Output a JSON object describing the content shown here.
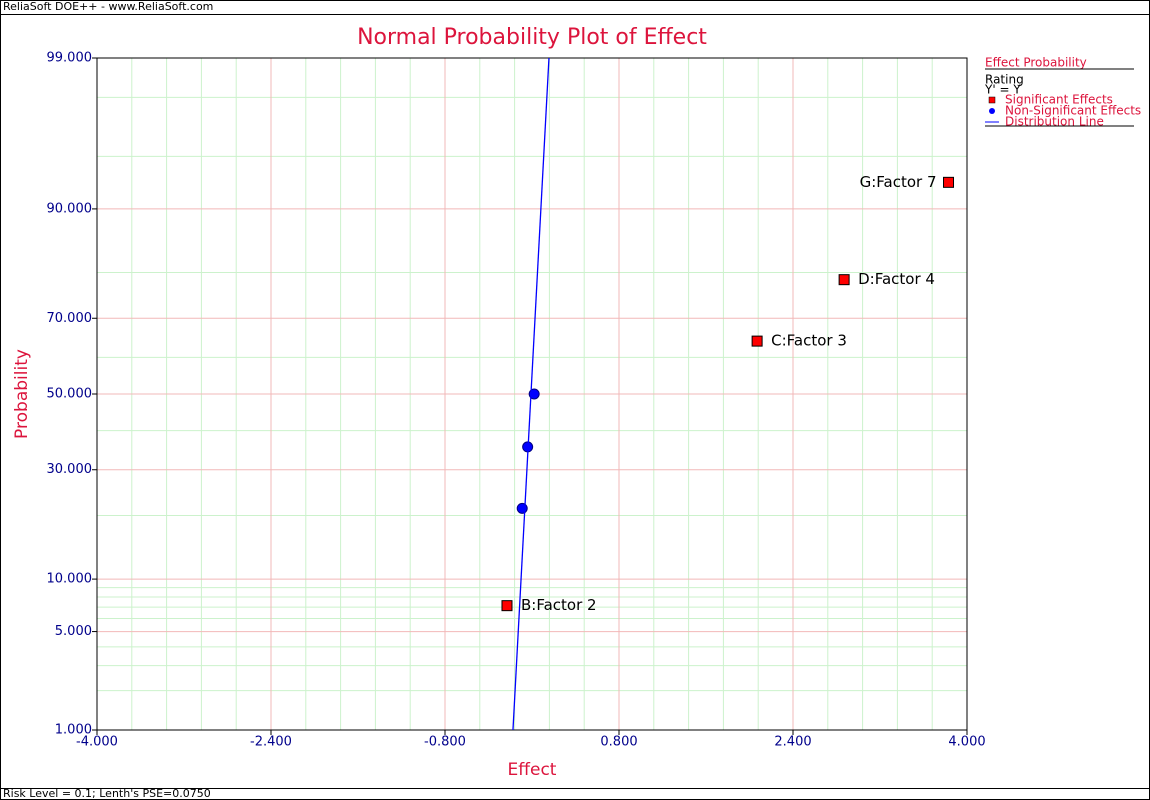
{
  "header": "ReliaSoft DOE++ - www.ReliaSoft.com",
  "footer": "Risk Level = 0.1; Lenth's PSE=0.0750",
  "chart_data": {
    "type": "probability-scatter",
    "title": "Normal Probability Plot of Effect",
    "xlabel": "Effect",
    "ylabel": "Probability",
    "yscale": "normal-probability",
    "xlim": [
      -4,
      4
    ],
    "xticks": [
      {
        "value": -4,
        "label": "-4.000"
      },
      {
        "value": -2.4,
        "label": "-2.400"
      },
      {
        "value": -0.8,
        "label": "-0.800"
      },
      {
        "value": 0.8,
        "label": "0.800"
      },
      {
        "value": 2.4,
        "label": "2.400"
      },
      {
        "value": 4,
        "label": "4.000"
      }
    ],
    "x_minor_grid": [
      -3.68,
      -3.36,
      -3.04,
      -2.72,
      -2.08,
      -1.76,
      -1.44,
      -1.12,
      -0.48,
      -0.16,
      0.16,
      0.48,
      1.12,
      1.44,
      1.76,
      2.08,
      2.72,
      3.04,
      3.36,
      3.68
    ],
    "ylim": [
      1,
      99
    ],
    "yticks": [
      {
        "value": 1,
        "label": "1.000"
      },
      {
        "value": 5,
        "label": "5.000"
      },
      {
        "value": 10,
        "label": "10.000"
      },
      {
        "value": 30,
        "label": "30.000"
      },
      {
        "value": 50,
        "label": "50.000"
      },
      {
        "value": 70,
        "label": "70.000"
      },
      {
        "value": 90,
        "label": "90.000"
      },
      {
        "value": 99,
        "label": "99.000"
      }
    ],
    "y_minor_grid": [
      2,
      3,
      4,
      6,
      7,
      8,
      9,
      20,
      40,
      60,
      80,
      95,
      98
    ],
    "legend_title": "Effect Probability",
    "legend_subtitle": "Rating",
    "legend_note": "Y' = Y",
    "legend_position": "right",
    "series": [
      {
        "name": "Significant Effects",
        "color": "#ff0000",
        "marker": "square",
        "x": [
          -0.23,
          2.07,
          2.87,
          3.83
        ],
        "values": [
          7.14,
          64.29,
          78.57,
          92.86
        ],
        "point_labels": [
          "B:Factor 2",
          "C:Factor 3",
          "D:Factor 4",
          "G:Factor 7"
        ]
      },
      {
        "name": "Non-Significant Effects",
        "color": "#0000ff",
        "marker": "circle",
        "x": [
          -0.09,
          -0.04,
          0.02
        ],
        "values": [
          21.43,
          35.71,
          50
        ]
      },
      {
        "name": "Distribution Line",
        "color": "#0000ff",
        "marker": "line",
        "x": [
          -0.175,
          0.156
        ],
        "values": [
          1,
          99
        ]
      }
    ]
  }
}
